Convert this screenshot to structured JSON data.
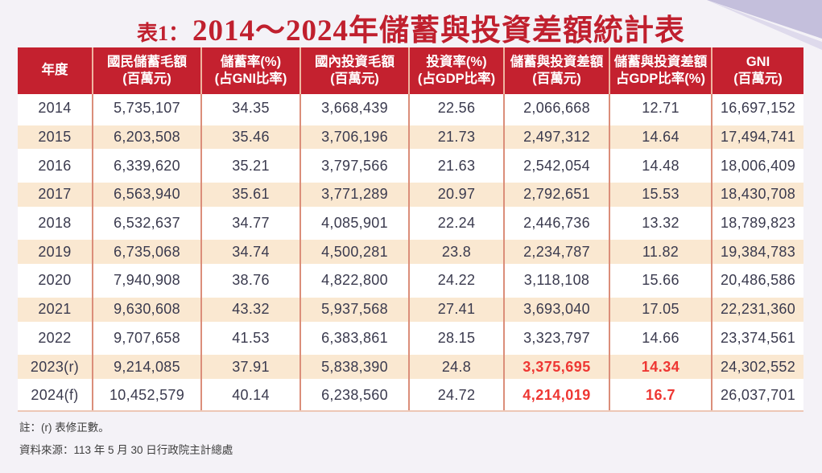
{
  "title": {
    "prefix": "表1：",
    "main": "2014～2024年儲蓄與投資差額統計表"
  },
  "table": {
    "headers": [
      {
        "line1": "年度",
        "line2": ""
      },
      {
        "line1": "國民儲蓄毛額",
        "line2": "(百萬元)"
      },
      {
        "line1": "儲蓄率(%)",
        "line2": "(占GNI比率)"
      },
      {
        "line1": "國內投資毛額",
        "line2": "(百萬元)"
      },
      {
        "line1": "投資率(%)",
        "line2": "(占GDP比率)"
      },
      {
        "line1": "儲蓄與投資差額",
        "line2": "(百萬元)"
      },
      {
        "line1": "儲蓄與投資差額",
        "line2": "占GDP比率(%)"
      },
      {
        "line1": "GNI",
        "line2": "(百萬元)"
      }
    ],
    "rows": [
      [
        "2014",
        "5,735,107",
        "34.35",
        "3,668,439",
        "22.56",
        "2,066,668",
        "12.71",
        "16,697,152"
      ],
      [
        "2015",
        "6,203,508",
        "35.46",
        "3,706,196",
        "21.73",
        "2,497,312",
        "14.64",
        "17,494,741"
      ],
      [
        "2016",
        "6,339,620",
        "35.21",
        "3,797,566",
        "21.63",
        "2,542,054",
        "14.48",
        "18,006,409"
      ],
      [
        "2017",
        "6,563,940",
        "35.61",
        "3,771,289",
        "20.97",
        "2,792,651",
        "15.53",
        "18,430,708"
      ],
      [
        "2018",
        "6,532,637",
        "34.77",
        "4,085,901",
        "22.24",
        "2,446,736",
        "13.32",
        "18,789,823"
      ],
      [
        "2019",
        "6,735,068",
        "34.74",
        "4,500,281",
        "23.8",
        "2,234,787",
        "11.82",
        "19,384,783"
      ],
      [
        "2020",
        "7,940,908",
        "38.76",
        "4,822,800",
        "24.22",
        "3,118,108",
        "15.66",
        "20,486,586"
      ],
      [
        "2021",
        "9,630,608",
        "43.32",
        "5,937,568",
        "27.41",
        "3,693,040",
        "17.05",
        "22,231,360"
      ],
      [
        "2022",
        "9,707,658",
        "41.53",
        "6,383,861",
        "28.15",
        "3,323,797",
        "14.66",
        "23,374,561"
      ],
      [
        "2023(r)",
        "9,214,085",
        "37.91",
        "5,838,390",
        "24.8",
        "3,375,695",
        "14.34",
        "24,302,552"
      ],
      [
        "2024(f)",
        "10,452,579",
        "40.14",
        "6,238,560",
        "24.72",
        "4,214,019",
        "16.7",
        "26,037,701"
      ]
    ],
    "highlights": [
      {
        "row": 9,
        "cols": [
          5,
          6
        ]
      },
      {
        "row": 10,
        "cols": [
          5,
          6
        ]
      }
    ]
  },
  "notes": {
    "revision": "註：(r) 表修正數。",
    "source": "資料來源：113 年 5 月 30 日行政院主計總處"
  },
  "colors": {
    "page_bg": "#f4f2f7",
    "title_red": "#c0202e",
    "header_bg": "#c4212f",
    "header_divider": "#efb5a1",
    "body_divider": "#db8e7a",
    "stripe_peach": "#fae8d1",
    "highlight_red": "#ee3733",
    "body_text": "#3a3a4e",
    "corner_main": "#c4bfdc",
    "corner_light": "#dedaec"
  }
}
